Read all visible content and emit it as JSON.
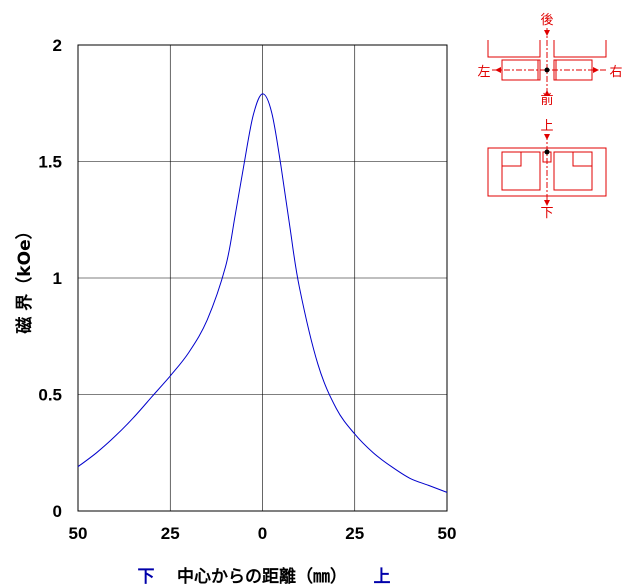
{
  "chart_data": {
    "type": "line",
    "xlabel": {
      "left": "下",
      "center": "中心からの距離（㎜）",
      "right": "上"
    },
    "ylabel": "磁 界（kOe）",
    "x_tick_labels": [
      "50",
      "25",
      "0",
      "25",
      "50"
    ],
    "y_tick_labels": [
      "0",
      "0.5",
      "1",
      "1.5",
      "2"
    ],
    "xlim": [
      -50,
      50
    ],
    "ylim": [
      0,
      2
    ],
    "grid": true,
    "series": [
      {
        "color": "#0000cc",
        "x": [
          -50,
          -45,
          -40,
          -35,
          -30,
          -25,
          -20,
          -15,
          -10,
          -7.5,
          -5,
          -2.5,
          0,
          2.5,
          5,
          7.5,
          10,
          15,
          20,
          25,
          30,
          35,
          40,
          45,
          50
        ],
        "y": [
          0.19,
          0.25,
          0.32,
          0.4,
          0.49,
          0.58,
          0.68,
          0.82,
          1.05,
          1.26,
          1.49,
          1.7,
          1.79,
          1.71,
          1.48,
          1.21,
          0.96,
          0.63,
          0.44,
          0.33,
          0.25,
          0.19,
          0.14,
          0.11,
          0.08
        ]
      }
    ]
  },
  "diagram": {
    "color": "#e00000",
    "top": {
      "back": "後",
      "front": "前",
      "left": "左",
      "right": "右"
    },
    "side": {
      "up": "上",
      "down": "下"
    }
  }
}
